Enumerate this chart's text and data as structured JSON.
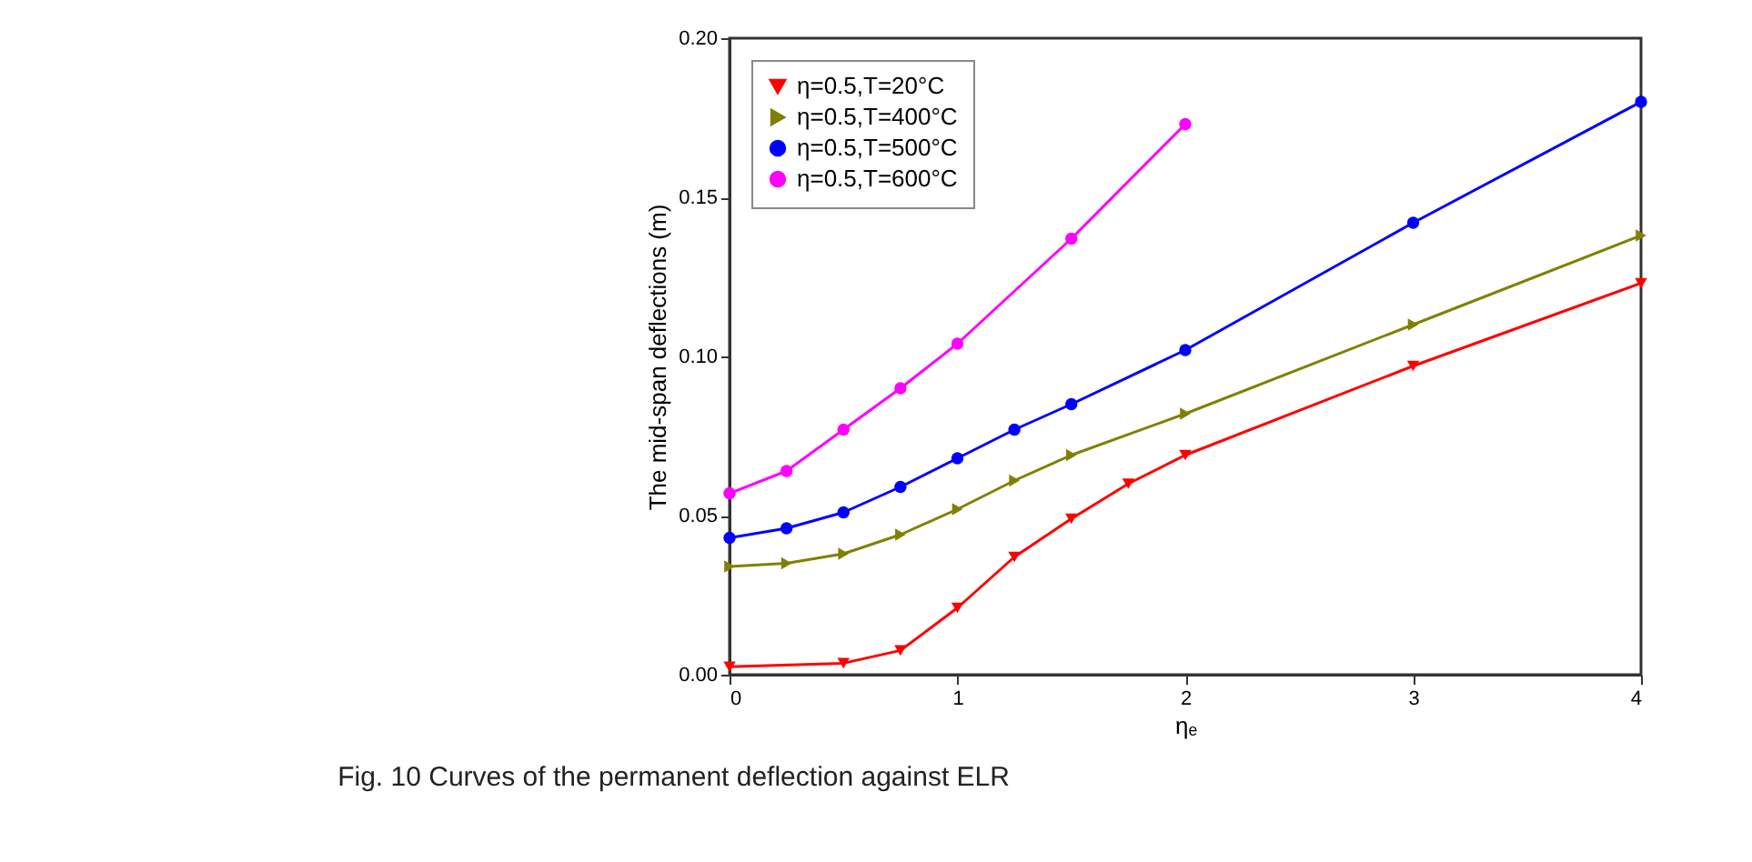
{
  "chart_data": {
    "type": "line",
    "xlabel": "ηₑ",
    "ylabel": "The mid-span deflections (m)",
    "annotations": [
      "Fig. 10  Curves of the permanent deflection against ELR"
    ],
    "xlim": [
      0,
      4
    ],
    "xticks": [
      0,
      1,
      2,
      3,
      4
    ],
    "ylim": [
      0,
      0.2
    ],
    "yticks": [
      {
        "value": 0,
        "label": "0.00"
      },
      {
        "value": 0.05,
        "label": "0.05"
      },
      {
        "value": 0.1,
        "label": "0.10"
      },
      {
        "value": 0.15,
        "label": "0.15"
      },
      {
        "value": 0.2,
        "label": "0.20"
      }
    ],
    "legend": "top left",
    "grid": false,
    "series": [
      {
        "name": "η=0.5,T=20°C",
        "color": "#ff0000",
        "marker": "triangle-down",
        "x": [
          0,
          0.5,
          0.75,
          1,
          1.25,
          1.5,
          1.75,
          2,
          3,
          4
        ],
        "values": [
          0.0025,
          0.0036,
          0.0076,
          0.021,
          0.037,
          0.049,
          0.06,
          0.069,
          0.097,
          0.123
        ]
      },
      {
        "name": "η=0.5,T=400°C",
        "color": "#808000",
        "marker": "triangle-right",
        "x": [
          0,
          0.25,
          0.5,
          0.75,
          1,
          1.25,
          1.5,
          2,
          3,
          4
        ],
        "values": [
          0.034,
          0.035,
          0.038,
          0.044,
          0.052,
          0.061,
          0.069,
          0.082,
          0.11,
          0.138
        ]
      },
      {
        "name": "η=0.5,T=500°C",
        "color": "#0000ff",
        "marker": "circle",
        "x": [
          0,
          0.25,
          0.5,
          0.75,
          1,
          1.25,
          1.5,
          2,
          3,
          4
        ],
        "values": [
          0.043,
          0.046,
          0.051,
          0.059,
          0.068,
          0.077,
          0.085,
          0.102,
          0.142,
          0.18
        ]
      },
      {
        "name": "η=0.5,T=600°C",
        "color": "#ff00ff",
        "marker": "circle",
        "x": [
          0,
          0.25,
          0.5,
          0.75,
          1,
          1.5,
          2
        ],
        "values": [
          0.057,
          0.064,
          0.077,
          0.09,
          0.104,
          0.137,
          0.173
        ]
      }
    ]
  }
}
